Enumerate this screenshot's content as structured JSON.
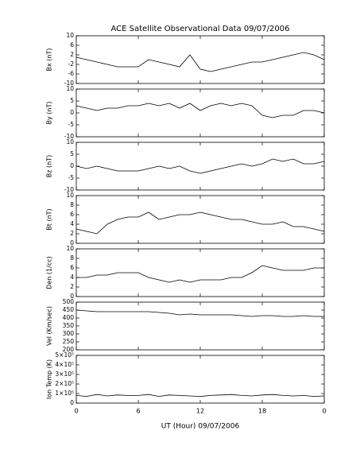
{
  "chart_data": [
    {
      "type": "line",
      "title": "ACE Satellite Observational Data  09/07/2006",
      "ylabel": "Bx (nT)",
      "color": "#000000",
      "ylim": [
        -10,
        10
      ],
      "yticks": [
        -10,
        -6,
        -2,
        2,
        6,
        10
      ],
      "x": [
        0,
        1,
        2,
        3,
        4,
        5,
        6,
        7,
        8,
        9,
        10,
        11,
        12,
        13,
        14,
        15,
        16,
        17,
        18,
        19,
        20,
        21,
        22,
        23,
        24
      ],
      "values": [
        1,
        0,
        -1,
        -2,
        -3,
        -3,
        -3,
        0,
        -1,
        -2,
        -3,
        2,
        -4,
        -5,
        -4,
        -3,
        -2,
        -1,
        -1,
        0,
        1,
        2,
        3,
        2,
        0
      ]
    },
    {
      "type": "line",
      "ylabel": "By (nT)",
      "color": "#000000",
      "ylim": [
        -10,
        10
      ],
      "yticks": [
        -10,
        -5,
        0,
        5,
        10
      ],
      "x": [
        0,
        1,
        2,
        3,
        4,
        5,
        6,
        7,
        8,
        9,
        10,
        11,
        12,
        13,
        14,
        15,
        16,
        17,
        18,
        19,
        20,
        21,
        22,
        23,
        24
      ],
      "values": [
        3,
        2,
        1,
        2,
        2,
        3,
        3,
        4,
        3,
        4,
        2,
        4,
        1,
        3,
        4,
        3,
        4,
        3,
        -1,
        -2,
        -1,
        -1,
        1,
        1,
        0
      ]
    },
    {
      "type": "line",
      "ylabel": "Bz (nT)",
      "color": "#000000",
      "ylim": [
        -10,
        10
      ],
      "yticks": [
        -10,
        -5,
        0,
        5,
        10
      ],
      "x": [
        0,
        1,
        2,
        3,
        4,
        5,
        6,
        7,
        8,
        9,
        10,
        11,
        12,
        13,
        14,
        15,
        16,
        17,
        18,
        19,
        20,
        21,
        22,
        23,
        24
      ],
      "values": [
        0,
        -1,
        0,
        -1,
        -2,
        -2,
        -2,
        -1,
        0,
        -1,
        0,
        -2,
        -3,
        -2,
        -1,
        0,
        1,
        0,
        1,
        3,
        2,
        3,
        1,
        1,
        2
      ]
    },
    {
      "type": "line",
      "ylabel": "Bt (nT)",
      "color": "#000000",
      "ylim": [
        0,
        10
      ],
      "yticks": [
        0,
        2,
        4,
        6,
        8,
        10
      ],
      "x": [
        0,
        1,
        2,
        3,
        4,
        5,
        6,
        7,
        8,
        9,
        10,
        11,
        12,
        13,
        14,
        15,
        16,
        17,
        18,
        19,
        20,
        21,
        22,
        23,
        24
      ],
      "values": [
        3,
        2.5,
        2,
        4,
        5,
        5.5,
        5.5,
        6.5,
        5,
        5.5,
        6,
        6,
        6.5,
        6,
        5.5,
        5,
        5,
        4.5,
        4,
        4,
        4.5,
        3.5,
        3.5,
        3,
        2.5
      ]
    },
    {
      "type": "line",
      "ylabel": "Den (1/cc)",
      "color": "#000000",
      "ylim": [
        0,
        10
      ],
      "yticks": [
        0,
        2,
        4,
        6,
        8,
        10
      ],
      "x": [
        0,
        1,
        2,
        3,
        4,
        5,
        6,
        7,
        8,
        9,
        10,
        11,
        12,
        13,
        14,
        15,
        16,
        17,
        18,
        19,
        20,
        21,
        22,
        23,
        24
      ],
      "values": [
        4,
        4,
        4.5,
        4.5,
        5,
        5,
        5,
        4,
        3.5,
        3,
        3.5,
        3,
        3.5,
        3.5,
        3.5,
        4,
        4,
        5,
        6.5,
        6,
        5.5,
        5.5,
        5.5,
        6,
        6
      ]
    },
    {
      "type": "line",
      "ylabel": "Vel (Km/sec)",
      "color": "#000000",
      "ylim": [
        200,
        500
      ],
      "yticks": [
        200,
        250,
        300,
        350,
        400,
        450,
        500
      ],
      "x": [
        0,
        1,
        2,
        3,
        4,
        5,
        6,
        7,
        8,
        9,
        10,
        11,
        12,
        13,
        14,
        15,
        16,
        17,
        18,
        19,
        20,
        21,
        22,
        23,
        24
      ],
      "values": [
        450,
        445,
        440,
        440,
        440,
        440,
        440,
        440,
        435,
        430,
        420,
        425,
        420,
        420,
        420,
        420,
        415,
        410,
        415,
        415,
        410,
        410,
        415,
        410,
        410
      ]
    },
    {
      "type": "line",
      "ylabel": "Ion Temp (K)",
      "color": "#000000",
      "xlabel": "UT (Hour)  09/07/2006",
      "ylim": [
        0,
        500000
      ],
      "yticks": [
        0,
        {
          "value": 100000,
          "label": "1×10⁵"
        },
        {
          "value": 200000,
          "label": "2×10⁵"
        },
        {
          "value": 300000,
          "label": "3×10⁵"
        },
        {
          "value": 400000,
          "label": "4×10⁵"
        },
        {
          "value": 500000,
          "label": "5×10⁵"
        }
      ],
      "xlim": [
        0,
        24
      ],
      "xticks": [
        0,
        6,
        12,
        18,
        {
          "value": 24,
          "label": "0"
        }
      ],
      "x": [
        0,
        1,
        2,
        3,
        4,
        5,
        6,
        7,
        8,
        9,
        10,
        11,
        12,
        13,
        14,
        15,
        16,
        17,
        18,
        19,
        20,
        21,
        22,
        23,
        24
      ],
      "values": [
        80000,
        70000,
        90000,
        75000,
        85000,
        80000,
        80000,
        90000,
        70000,
        85000,
        80000,
        75000,
        70000,
        80000,
        85000,
        90000,
        80000,
        75000,
        85000,
        90000,
        80000,
        75000,
        80000,
        70000,
        75000
      ]
    }
  ]
}
